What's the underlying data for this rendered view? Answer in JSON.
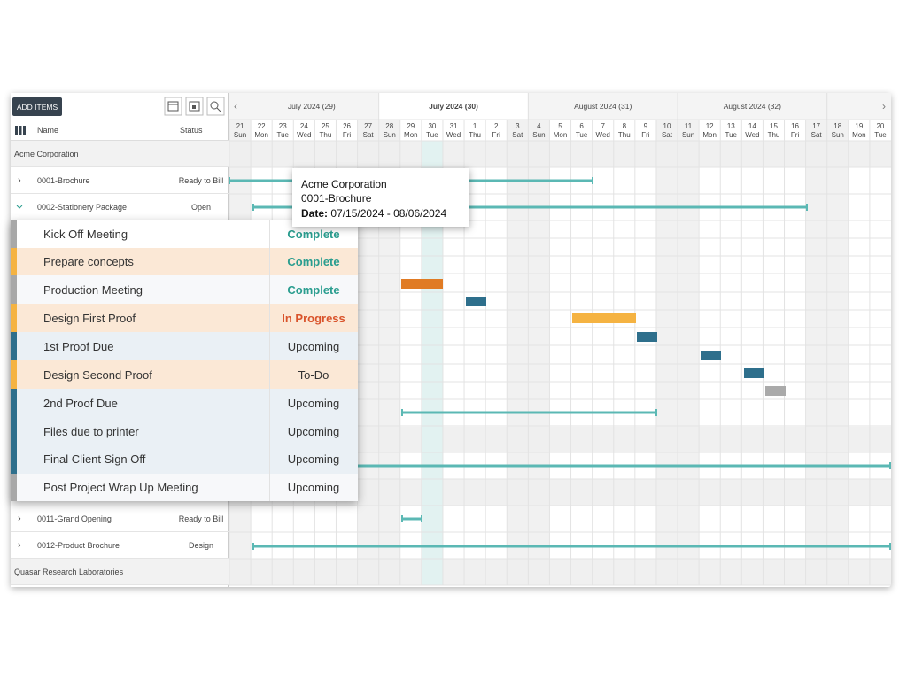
{
  "toolbar": {
    "add_button": "ADD ITEMS"
  },
  "columns": {
    "name": "Name",
    "status": "Status"
  },
  "rows": [
    {
      "name": "Acme Corporation"
    },
    {
      "name": "0001-Brochure",
      "status": "Ready to Bill"
    },
    {
      "name": "0002-Stationery Package",
      "status": "Open"
    },
    {
      "name": "0011-Grand Opening",
      "status": "Ready to Bill"
    },
    {
      "name": "0012-Product Brochure",
      "status": "Design"
    },
    {
      "name": "Quasar Research Laboratories"
    }
  ],
  "tasks": [
    {
      "name": "Kick Off Meeting",
      "status": "Complete"
    },
    {
      "name": "Prepare concepts",
      "status": "Complete"
    },
    {
      "name": "Production Meeting",
      "status": "Complete"
    },
    {
      "name": "Design First Proof",
      "status": "In Progress"
    },
    {
      "name": "1st Proof Due",
      "status": "Upcoming"
    },
    {
      "name": "Design Second Proof",
      "status": "To-Do"
    },
    {
      "name": "2nd Proof Due",
      "status": "Upcoming"
    },
    {
      "name": "Files due to printer",
      "status": "Upcoming"
    },
    {
      "name": "Final Client Sign Off",
      "status": "Upcoming"
    },
    {
      "name": "Post Project Wrap Up Meeting",
      "status": "Upcoming"
    }
  ],
  "timeline": {
    "months": [
      "July 2024 (29)",
      "July 2024 (30)",
      "August 2024 (31)",
      "August 2024 (32)"
    ],
    "days": [
      {
        "date": "21",
        "weekday": "Sun"
      },
      {
        "date": "22",
        "weekday": "Mon"
      },
      {
        "date": "23",
        "weekday": "Tue"
      },
      {
        "date": "24",
        "weekday": "Wed"
      },
      {
        "date": "25",
        "weekday": "Thu"
      },
      {
        "date": "26",
        "weekday": "Fri"
      },
      {
        "date": "27",
        "weekday": "Sat"
      },
      {
        "date": "28",
        "weekday": "Sun"
      },
      {
        "date": "29",
        "weekday": "Mon"
      },
      {
        "date": "30",
        "weekday": "Tue"
      },
      {
        "date": "31",
        "weekday": "Wed"
      },
      {
        "date": "1",
        "weekday": "Thu"
      },
      {
        "date": "2",
        "weekday": "Fri"
      },
      {
        "date": "3",
        "weekday": "Sat"
      },
      {
        "date": "4",
        "weekday": "Sun"
      },
      {
        "date": "5",
        "weekday": "Mon"
      },
      {
        "date": "6",
        "weekday": "Tue"
      },
      {
        "date": "7",
        "weekday": "Wed"
      },
      {
        "date": "8",
        "weekday": "Thu"
      },
      {
        "date": "9",
        "weekday": "Fri"
      },
      {
        "date": "10",
        "weekday": "Sat"
      },
      {
        "date": "11",
        "weekday": "Sun"
      },
      {
        "date": "12",
        "weekday": "Mon"
      },
      {
        "date": "13",
        "weekday": "Tue"
      },
      {
        "date": "14",
        "weekday": "Wed"
      },
      {
        "date": "15",
        "weekday": "Thu"
      },
      {
        "date": "16",
        "weekday": "Fri"
      },
      {
        "date": "17",
        "weekday": "Sat"
      },
      {
        "date": "18",
        "weekday": "Sun"
      },
      {
        "date": "19",
        "weekday": "Mon"
      },
      {
        "date": "20",
        "weekday": "Tue"
      }
    ]
  },
  "tooltip": {
    "client": "Acme Corporation",
    "project": "0001-Brochure",
    "date_label": "Date:",
    "date_range": "07/15/2024 - 08/06/2024"
  }
}
